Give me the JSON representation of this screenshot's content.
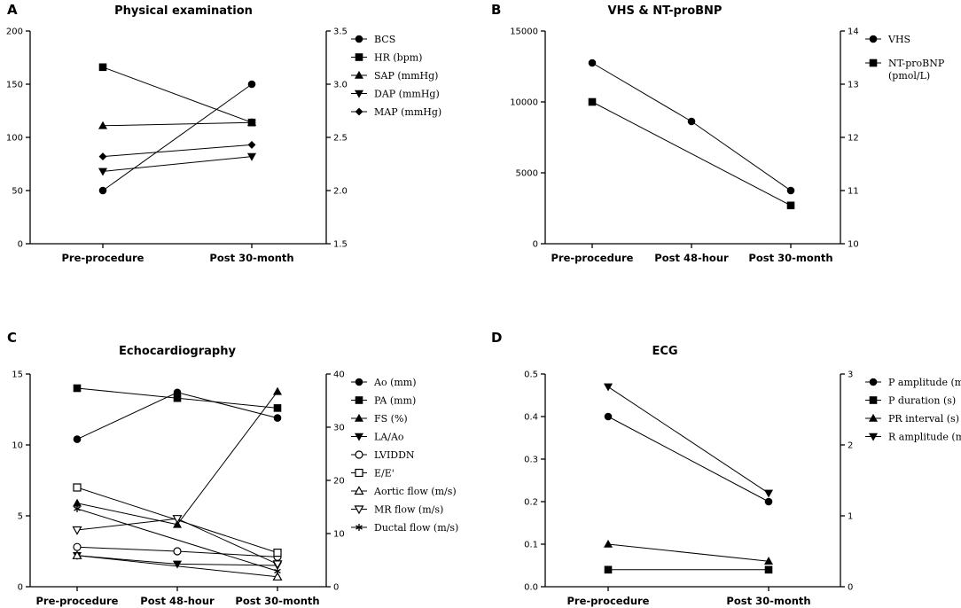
{
  "chart_data": [
    {
      "type": "line",
      "letter": "A",
      "title": "Physical examination",
      "categories": [
        "Pre-procedure",
        "Post 30-month"
      ],
      "y_left": {
        "min": 0,
        "max": 200,
        "ticks": [
          "0",
          "50",
          "100",
          "150",
          "200"
        ]
      },
      "y_right": {
        "min": 1.5,
        "max": 3.5,
        "ticks": [
          "1.5",
          "2.0",
          "2.5",
          "3.0",
          "3.5"
        ]
      },
      "series": [
        {
          "name": "BCS",
          "marker": "circle",
          "axis": "right",
          "values": [
            2.0,
            3.0
          ]
        },
        {
          "name": "HR  (bpm)",
          "marker": "square",
          "axis": "left",
          "values": [
            166,
            114
          ]
        },
        {
          "name": "SAP (mmHg)",
          "marker": "triangle-up",
          "axis": "left",
          "values": [
            111,
            114
          ]
        },
        {
          "name": "DAP  (mmHg)",
          "marker": "triangle-down",
          "axis": "left",
          "values": [
            68,
            82
          ]
        },
        {
          "name": "MAP  (mmHg)",
          "marker": "diamond",
          "axis": "left",
          "values": [
            82,
            93
          ]
        }
      ]
    },
    {
      "type": "line",
      "letter": "B",
      "title": "VHS & NT-proBNP",
      "categories": [
        "Pre-procedure",
        "Post 48-hour",
        "Post 30-month"
      ],
      "y_left": {
        "min": 0,
        "max": 15000,
        "ticks": [
          "0",
          "5000",
          "10000",
          "15000"
        ]
      },
      "y_right": {
        "min": 10,
        "max": 14,
        "ticks": [
          "10",
          "11",
          "12",
          "13",
          "14"
        ]
      },
      "series": [
        {
          "name": "VHS",
          "marker": "circle",
          "axis": "right",
          "values": [
            13.4,
            12.3,
            11.0
          ]
        },
        {
          "name": "NT-proBNP (pmol/L)",
          "label_lines": [
            "NT-proBNP",
            "(pmol/L)"
          ],
          "marker": "square",
          "axis": "left",
          "values": [
            10000,
            null,
            2700
          ]
        }
      ]
    },
    {
      "type": "line",
      "letter": "C",
      "title": "Echocardiography",
      "categories": [
        "Pre-procedure",
        "Post 48-hour",
        "Post 30-month"
      ],
      "y_left": {
        "min": 0,
        "max": 15,
        "ticks": [
          "0",
          "5",
          "10",
          "15"
        ]
      },
      "y_right": {
        "min": 0,
        "max": 40,
        "ticks": [
          "0",
          "10",
          "20",
          "30",
          "40"
        ]
      },
      "series": [
        {
          "name": "Ao (mm)",
          "marker": "circle",
          "axis": "left",
          "values": [
            10.4,
            13.7,
            11.9
          ]
        },
        {
          "name": "PA (mm)",
          "marker": "square",
          "axis": "left",
          "values": [
            14.0,
            13.3,
            12.6
          ]
        },
        {
          "name": "FS (%)",
          "marker": "triangle-up",
          "axis": "right",
          "values": [
            15.7,
            11.7,
            36.7
          ]
        },
        {
          "name": "LA/Ao",
          "marker": "triangle-down",
          "axis": "left",
          "values": [
            2.2,
            1.6,
            1.5
          ]
        },
        {
          "name": "LVIDDN",
          "marker": "circle-open",
          "axis": "left",
          "values": [
            2.8,
            2.5,
            2.1
          ]
        },
        {
          "name": "E/E'",
          "marker": "square-open",
          "axis": "left",
          "values": [
            7.0,
            null,
            2.4
          ]
        },
        {
          "name": "Aortic flow (m/s)",
          "marker": "triangle-up-open",
          "axis": "left",
          "values": [
            2.2,
            null,
            0.7
          ]
        },
        {
          "name": "MR flow (m/s)",
          "marker": "triangle-down-open",
          "axis": "left",
          "values": [
            4.0,
            4.8,
            1.6
          ]
        },
        {
          "name": "Ductal flow (m/s)",
          "marker": "asterisk",
          "axis": "left",
          "values": [
            5.5,
            null,
            1.1
          ]
        }
      ]
    },
    {
      "type": "line",
      "letter": "D",
      "title": "ECG",
      "categories": [
        "Pre-procedure",
        "Post 30-month"
      ],
      "y_left": {
        "min": 0,
        "max": 0.5,
        "ticks": [
          "0.0",
          "0.1",
          "0.2",
          "0.3",
          "0.4",
          "0.5"
        ]
      },
      "y_right": {
        "min": 0,
        "max": 3,
        "ticks": [
          "0",
          "1",
          "2",
          "3"
        ]
      },
      "series": [
        {
          "name": "P amplitude (mV)",
          "marker": "circle",
          "axis": "left",
          "values": [
            0.4,
            0.2
          ]
        },
        {
          "name": "P duration (s)",
          "marker": "square",
          "axis": "left",
          "values": [
            0.04,
            0.04
          ]
        },
        {
          "name": "PR interval (s)",
          "marker": "triangle-up",
          "axis": "left",
          "values": [
            0.1,
            0.06
          ]
        },
        {
          "name": "R amplitude (mV)",
          "marker": "triangle-down",
          "axis": "right",
          "values": [
            2.82,
            1.32
          ]
        }
      ]
    }
  ]
}
